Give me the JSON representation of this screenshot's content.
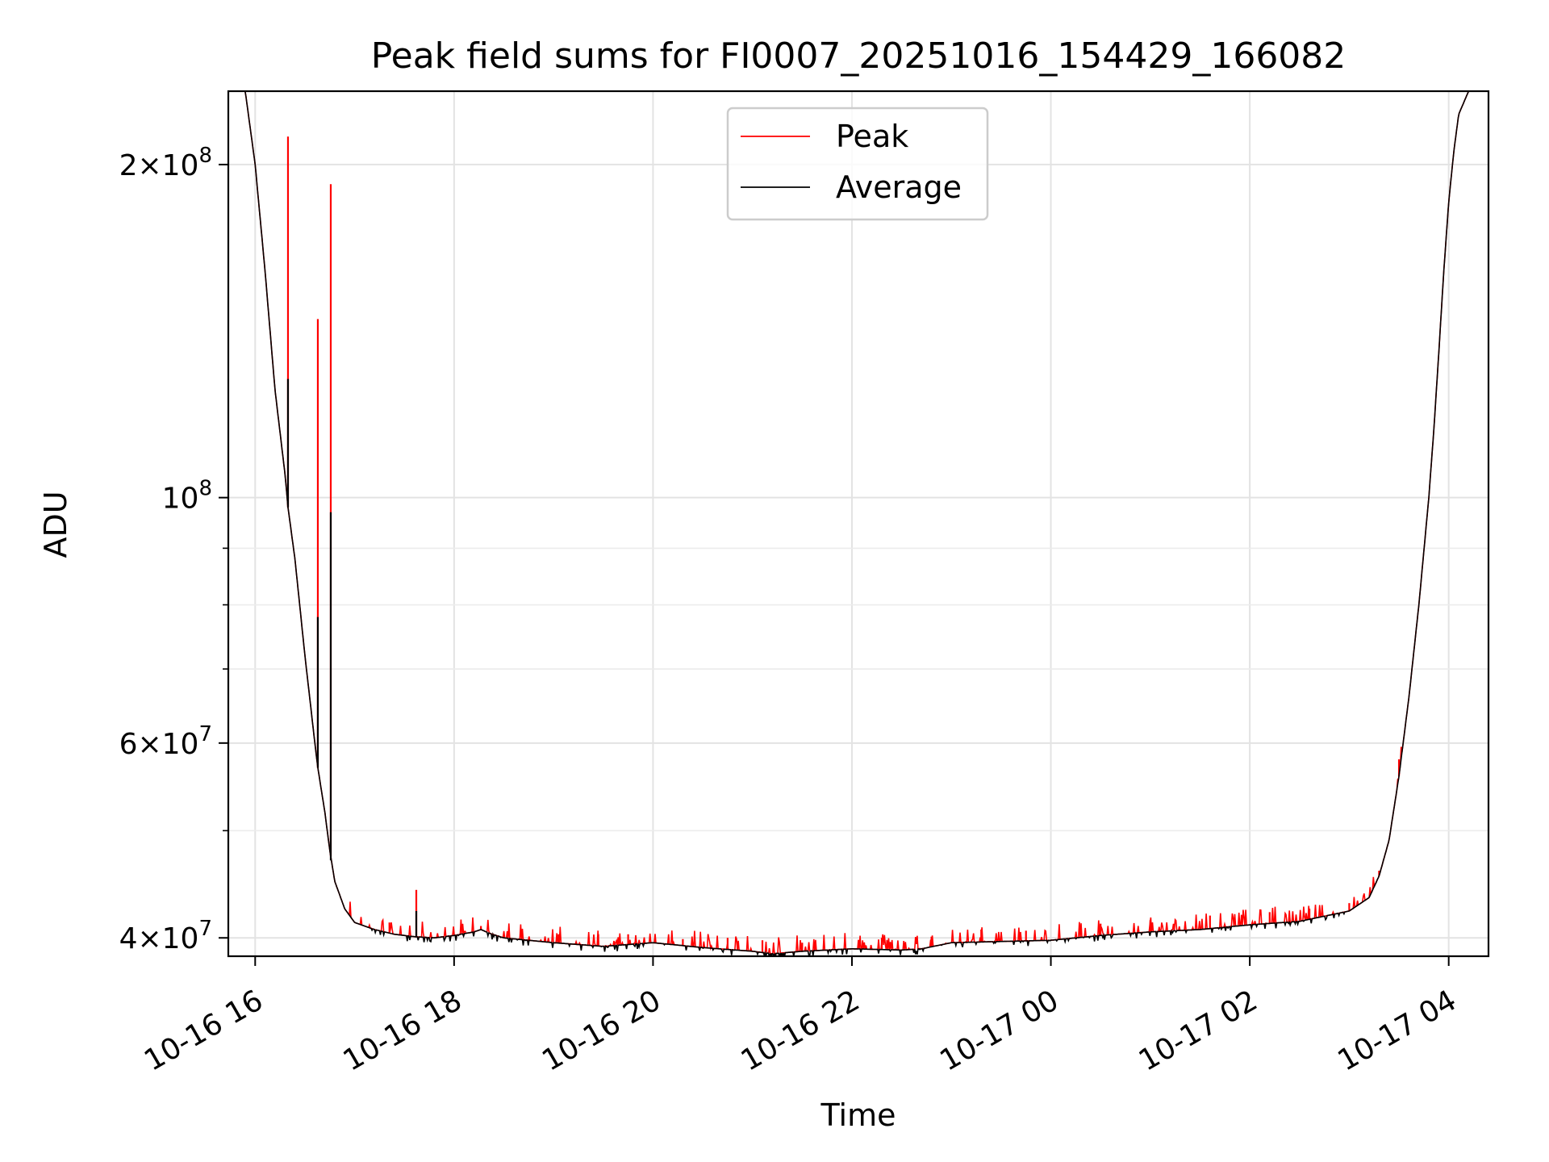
{
  "chart_data": {
    "type": "line",
    "title": "Peak field sums for FI0007_20251016_154429_166082",
    "xlabel": "Time",
    "ylabel": "ADU",
    "yscale": "log",
    "xlim_hours": [
      15.73,
      28.4
    ],
    "ylim": [
      38500000,
      233000000
    ],
    "grid": true,
    "legend_location": "upper center",
    "x_ticks": [
      {
        "hours": 16,
        "label": "10-16 16"
      },
      {
        "hours": 18,
        "label": "10-16 18"
      },
      {
        "hours": 20,
        "label": "10-16 20"
      },
      {
        "hours": 22,
        "label": "10-16 22"
      },
      {
        "hours": 24,
        "label": "10-17 00"
      },
      {
        "hours": 26,
        "label": "10-17 02"
      },
      {
        "hours": 28,
        "label": "10-17 04"
      }
    ],
    "y_major_ticks": [
      {
        "value": 40000000,
        "mantissa": "4",
        "exponent": "7"
      },
      {
        "value": 60000000,
        "mantissa": "6",
        "exponent": "7"
      },
      {
        "value": 100000000,
        "mantissa": "",
        "exponent": "8"
      },
      {
        "value": 200000000,
        "mantissa": "2",
        "exponent": "8"
      }
    ],
    "y_minor_ticks": [
      50000000,
      70000000,
      80000000,
      90000000
    ],
    "times_label_note": "x values are hours since 2025-10-16 00:00",
    "series": [
      {
        "name": "Average",
        "color": "#000000",
        "x": [
          15.73,
          15.9,
          16.0,
          16.1,
          16.2,
          16.3,
          16.33,
          16.4,
          16.5,
          16.6,
          16.63,
          16.7,
          16.75,
          16.8,
          16.9,
          17.0,
          17.2,
          17.4,
          17.6,
          17.8,
          18.0,
          18.2,
          18.27,
          18.35,
          18.5,
          19.0,
          19.5,
          20.0,
          20.5,
          21.0,
          21.2,
          21.5,
          22.0,
          22.5,
          22.7,
          23.0,
          23.5,
          24.0,
          24.5,
          25.0,
          25.5,
          26.0,
          26.5,
          27.0,
          27.2,
          27.3,
          27.4,
          27.5,
          27.6,
          27.7,
          27.8,
          27.85,
          27.9,
          27.95,
          28.0,
          28.05,
          28.1,
          28.2,
          28.4
        ],
        "values": [
          233000000,
          233000000,
          200000000,
          160000000,
          125000000,
          105000000,
          98000000,
          88000000,
          72000000,
          60000000,
          57000000,
          52000000,
          48000000,
          45000000,
          42500000,
          41300000,
          40700000,
          40300000,
          40100000,
          40000000,
          40200000,
          40500000,
          40700000,
          40400000,
          40000000,
          39600000,
          39300000,
          39600000,
          39200000,
          38900000,
          38700000,
          38900000,
          39100000,
          39000000,
          39100000,
          39600000,
          39700000,
          39800000,
          40200000,
          40500000,
          40700000,
          41100000,
          41400000,
          42300000,
          43500000,
          45500000,
          49000000,
          56000000,
          66000000,
          80000000,
          100000000,
          115000000,
          135000000,
          160000000,
          185000000,
          205000000,
          222000000,
          233000000,
          233000000
        ]
      },
      {
        "name": "Peak",
        "color": "#ff0000",
        "spikes": [
          {
            "x": 16.33,
            "value": 212000000
          },
          {
            "x": 16.63,
            "value": 145000000
          },
          {
            "x": 16.76,
            "value": 192000000
          },
          {
            "x": 17.62,
            "value": 44200000
          },
          {
            "x": 17.35,
            "value": 41300000
          },
          {
            "x": 18.27,
            "value": 41000000
          },
          {
            "x": 19.05,
            "value": 40300000
          },
          {
            "x": 19.45,
            "value": 40300000
          },
          {
            "x": 19.75,
            "value": 40300000
          },
          {
            "x": 20.3,
            "value": 39900000
          },
          {
            "x": 20.75,
            "value": 40000000
          },
          {
            "x": 21.1,
            "value": 39800000
          },
          {
            "x": 21.5,
            "value": 39600000
          },
          {
            "x": 22.3,
            "value": 40000000
          },
          {
            "x": 22.8,
            "value": 40100000
          },
          {
            "x": 23.3,
            "value": 40700000
          },
          {
            "x": 23.75,
            "value": 40600000
          },
          {
            "x": 24.5,
            "value": 41200000
          },
          {
            "x": 25.0,
            "value": 41500000
          },
          {
            "x": 25.6,
            "value": 41900000
          },
          {
            "x": 26.2,
            "value": 42200000
          },
          {
            "x": 26.6,
            "value": 42500000
          },
          {
            "x": 27.0,
            "value": 43000000
          },
          {
            "x": 27.3,
            "value": 46000000
          },
          {
            "x": 27.5,
            "value": 58000000
          }
        ]
      }
    ]
  }
}
